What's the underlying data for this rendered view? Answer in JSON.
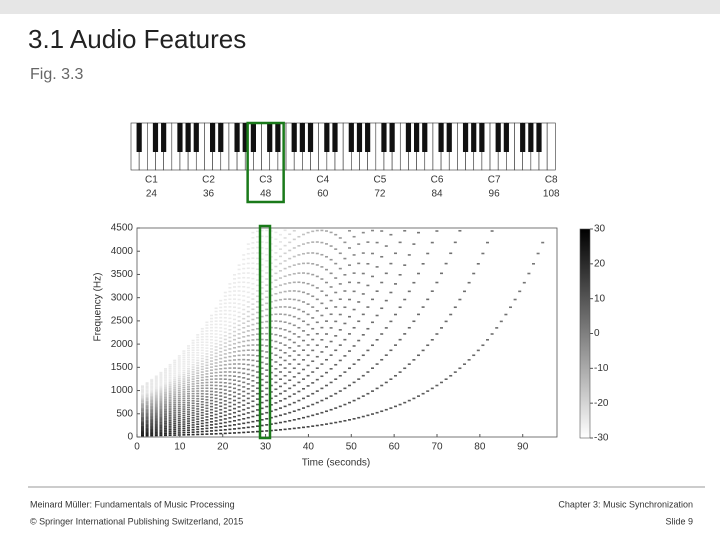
{
  "header": {
    "title": "3.1 Audio Features",
    "subtitle": "Fig. 3.3"
  },
  "figure": {
    "notes": [
      {
        "name": "C1",
        "number": 24
      },
      {
        "name": "C2",
        "number": 36
      },
      {
        "name": "C3",
        "number": 48
      },
      {
        "name": "C4",
        "number": 60
      },
      {
        "name": "C5",
        "number": 72
      },
      {
        "name": "C6",
        "number": 84
      },
      {
        "name": "C7",
        "number": 96
      },
      {
        "name": "C8",
        "number": 108
      }
    ],
    "x_label": "Time (seconds)",
    "y_label": "Frequency (Hz)",
    "xlim": [
      0,
      98
    ],
    "xticks": [
      0,
      10,
      20,
      30,
      40,
      50,
      60,
      70,
      80,
      90
    ],
    "ylim": [
      0,
      4500
    ],
    "yticks": [
      0,
      500,
      1000,
      1500,
      2000,
      2500,
      3000,
      3500,
      4000,
      4500
    ],
    "colorbar": {
      "lim": [
        -30,
        30
      ],
      "ticks": [
        -30,
        -20,
        -10,
        0,
        10,
        20,
        30
      ]
    }
  },
  "footer": {
    "left": [
      "Meinard Müller: Fundamentals of Music Processing",
      "© Springer International Publishing Switzerland, 2015"
    ],
    "right": [
      "Chapter 3: Music Synchronization",
      "Slide 9"
    ]
  }
}
